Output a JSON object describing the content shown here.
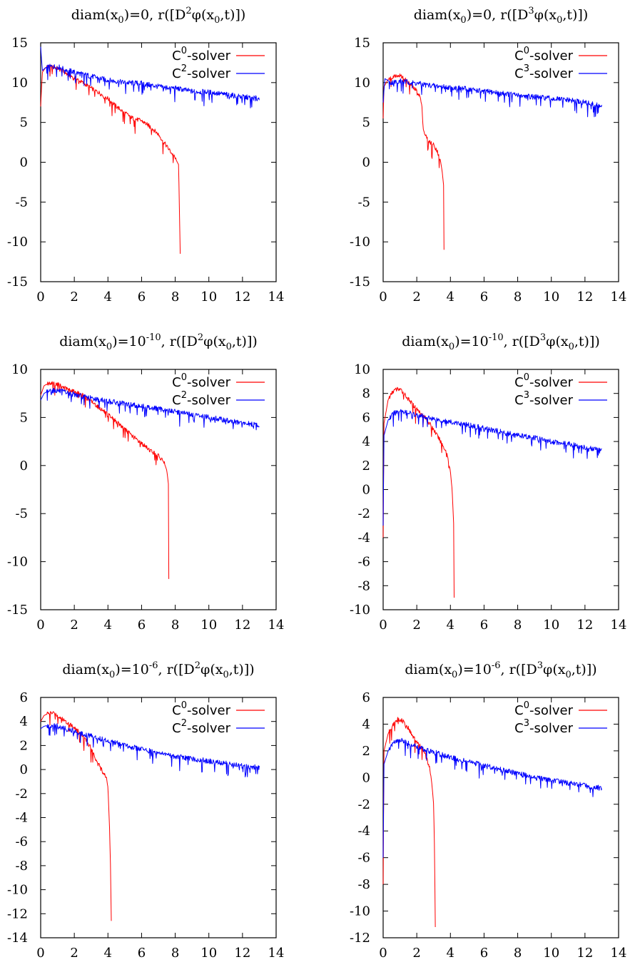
{
  "chart_data": [
    {
      "type": "line",
      "title": {
        "pre": "diam(x",
        "sub1": "0",
        "mid": ")=0, r([D",
        "sup": "2",
        "post1": "φ(x",
        "sub2": "0",
        "post2": ",t)])"
      },
      "xlim": [
        0,
        14
      ],
      "ylim": [
        -15,
        15
      ],
      "xticks": [
        "0",
        "2",
        "4",
        "6",
        "8",
        "10",
        "12",
        "14"
      ],
      "yticks": [
        "-15",
        "-10",
        "-5",
        "0",
        "5",
        "10",
        "15"
      ],
      "grid": false,
      "legend_position": "top-right",
      "series": [
        {
          "name": {
            "base": "C",
            "sup": "0",
            "tail": "-solver"
          },
          "color": "#ff0000",
          "x": [
            0,
            0.1,
            0.3,
            0.6,
            1.0,
            1.5,
            2.0,
            2.5,
            3.0,
            3.5,
            4.0,
            4.5,
            5.0,
            5.5,
            6.0,
            6.5,
            7.0,
            7.5,
            8.0,
            8.2,
            8.25,
            8.3
          ],
          "y": [
            7,
            11.3,
            11.9,
            12.0,
            11.8,
            11.2,
            10.6,
            10.0,
            9.3,
            8.7,
            8.0,
            7.0,
            6.2,
            5.5,
            5.2,
            4.5,
            3.5,
            2.0,
            0.5,
            -0.3,
            -6,
            -11.5
          ]
        },
        {
          "name": {
            "base": "C",
            "sup": "2",
            "tail": "-solver"
          },
          "color": "#0000ff",
          "x": [
            0,
            0.1,
            0.3,
            0.6,
            1.0,
            2.0,
            3.0,
            4.0,
            5.0,
            6.0,
            7.0,
            8.0,
            9.0,
            10.0,
            11.0,
            12.0,
            13.0
          ],
          "y": [
            14.5,
            11.5,
            11.9,
            12.0,
            12.0,
            11.3,
            10.8,
            10.3,
            10.0,
            9.9,
            9.5,
            9.3,
            8.9,
            8.8,
            8.5,
            8.2,
            8.0
          ]
        }
      ]
    },
    {
      "type": "line",
      "title": {
        "pre": "diam(x",
        "sub1": "0",
        "mid": ")=0, r([D",
        "sup": "3",
        "post1": "φ(x",
        "sub2": "0",
        "post2": ",t)])"
      },
      "xlim": [
        0,
        14
      ],
      "ylim": [
        -15,
        15
      ],
      "xticks": [
        "0",
        "2",
        "4",
        "6",
        "8",
        "10",
        "12",
        "14"
      ],
      "yticks": [
        "-15",
        "-10",
        "-5",
        "0",
        "5",
        "10",
        "15"
      ],
      "grid": false,
      "legend_position": "top-right",
      "series": [
        {
          "name": {
            "base": "C",
            "sup": "0",
            "tail": "-solver"
          },
          "color": "#ff0000",
          "x": [
            0,
            0.05,
            0.3,
            0.6,
            0.9,
            1.2,
            1.5,
            1.8,
            2.0,
            2.2,
            2.3,
            2.4,
            2.6,
            2.8,
            3.0,
            3.2,
            3.4,
            3.5,
            3.6,
            3.62
          ],
          "y": [
            5.5,
            9.5,
            10.4,
            10.8,
            11.0,
            10.6,
            10.0,
            9.3,
            9.0,
            8.2,
            7.0,
            4.0,
            3.0,
            2.5,
            2.2,
            1.5,
            0.3,
            -1.0,
            -3.0,
            -11.0
          ]
        },
        {
          "name": {
            "base": "C",
            "sup": "3",
            "tail": "-solver"
          },
          "color": "#0000ff",
          "x": [
            0,
            0.1,
            0.5,
            1,
            2,
            3,
            4,
            5,
            6,
            7,
            8,
            9,
            10,
            11,
            12,
            13
          ],
          "y": [
            7.5,
            10.5,
            10.0,
            10.2,
            9.9,
            9.6,
            9.4,
            9.2,
            8.9,
            8.7,
            8.4,
            8.2,
            8.0,
            7.8,
            7.5,
            7.0
          ]
        }
      ]
    },
    {
      "type": "line",
      "title": {
        "pre": "diam(x",
        "sub1": "0",
        "mid": ")=10",
        "midsup": "-10",
        "mid2": ", r([D",
        "sup": "2",
        "post1": "φ(x",
        "sub2": "0",
        "post2": ",t)])"
      },
      "xlim": [
        0,
        14
      ],
      "ylim": [
        -15,
        10
      ],
      "xticks": [
        "0",
        "2",
        "4",
        "6",
        "8",
        "10",
        "12",
        "14"
      ],
      "yticks": [
        "-15",
        "-10",
        "-5",
        "0",
        "5",
        "10"
      ],
      "grid": false,
      "legend_position": "top-right",
      "series": [
        {
          "name": {
            "base": "C",
            "sup": "0",
            "tail": "-solver"
          },
          "color": "#ff0000",
          "x": [
            0,
            0.2,
            0.5,
            1.0,
            1.5,
            2.0,
            2.5,
            3.0,
            3.5,
            4.0,
            4.5,
            5.0,
            5.5,
            6.0,
            6.5,
            7.0,
            7.3,
            7.5,
            7.6,
            7.62
          ],
          "y": [
            7.3,
            8.3,
            8.6,
            8.5,
            8.0,
            7.7,
            7.3,
            6.7,
            6.0,
            5.3,
            4.6,
            3.8,
            3.0,
            2.3,
            1.6,
            1.0,
            0.5,
            -0.5,
            -2.0,
            -11.8
          ]
        },
        {
          "name": {
            "base": "C",
            "sup": "2",
            "tail": "-solver"
          },
          "color": "#0000ff",
          "x": [
            0,
            0.2,
            0.5,
            1,
            2,
            3,
            4,
            5,
            6,
            7,
            8,
            9,
            10,
            11,
            12,
            13
          ],
          "y": [
            6.8,
            7.5,
            7.8,
            7.8,
            7.4,
            7.0,
            6.7,
            6.4,
            6.2,
            5.9,
            5.6,
            5.3,
            5.0,
            4.7,
            4.4,
            4.2
          ]
        }
      ]
    },
    {
      "type": "line",
      "title": {
        "pre": "diam(x",
        "sub1": "0",
        "mid": ")=10",
        "midsup": "-10",
        "mid2": ", r([D",
        "sup": "3",
        "post1": "φ(x",
        "sub2": "0",
        "post2": ",t)])"
      },
      "xlim": [
        0,
        14
      ],
      "ylim": [
        -10,
        10
      ],
      "xticks": [
        "0",
        "2",
        "4",
        "6",
        "8",
        "10",
        "12",
        "14"
      ],
      "yticks": [
        "-10",
        "-8",
        "-6",
        "-4",
        "-2",
        "0",
        "2",
        "4",
        "6",
        "8",
        "10"
      ],
      "grid": false,
      "legend_position": "top-right",
      "series": [
        {
          "name": {
            "base": "C",
            "sup": "0",
            "tail": "-solver"
          },
          "color": "#ff0000",
          "x": [
            0,
            0.05,
            0.3,
            0.6,
            0.9,
            1.2,
            1.5,
            2.0,
            2.5,
            3.0,
            3.5,
            3.8,
            4.0,
            4.1,
            4.2,
            4.22
          ],
          "y": [
            -4,
            5.5,
            7.5,
            8.2,
            8.4,
            8.1,
            7.5,
            6.7,
            6.0,
            5.0,
            3.8,
            3.0,
            1.5,
            0.0,
            -3.0,
            -9.0
          ]
        },
        {
          "name": {
            "base": "C",
            "sup": "3",
            "tail": "-solver"
          },
          "color": "#0000ff",
          "x": [
            0,
            0.05,
            0.3,
            0.6,
            1,
            2,
            3,
            4,
            5,
            6,
            7,
            8,
            9,
            10,
            11,
            12,
            13
          ],
          "y": [
            -3,
            4.5,
            5.8,
            6.3,
            6.6,
            6.2,
            5.9,
            5.6,
            5.4,
            5.1,
            4.8,
            4.5,
            4.3,
            4.0,
            3.8,
            3.5,
            3.2
          ]
        }
      ]
    },
    {
      "type": "line",
      "title": {
        "pre": "diam(x",
        "sub1": "0",
        "mid": ")=10",
        "midsup": "-6",
        "mid2": ", r([D",
        "sup": "2",
        "post1": "φ(x",
        "sub2": "0",
        "post2": ",t)])"
      },
      "xlim": [
        0,
        14
      ],
      "ylim": [
        -14,
        6
      ],
      "xticks": [
        "0",
        "2",
        "4",
        "6",
        "8",
        "10",
        "12",
        "14"
      ],
      "yticks": [
        "-14",
        "-12",
        "-10",
        "-8",
        "-6",
        "-4",
        "-2",
        "0",
        "2",
        "4",
        "6"
      ],
      "grid": false,
      "legend_position": "top-right",
      "series": [
        {
          "name": {
            "base": "C",
            "sup": "0",
            "tail": "-solver"
          },
          "color": "#ff0000",
          "x": [
            0,
            0.2,
            0.5,
            0.8,
            1.0,
            1.5,
            2.0,
            2.5,
            3.0,
            3.3,
            3.6,
            3.9,
            4.0,
            4.1,
            4.15,
            4.2
          ],
          "y": [
            4.0,
            4.5,
            4.7,
            4.7,
            4.5,
            4.0,
            3.5,
            2.8,
            1.8,
            0.8,
            0.0,
            -0.6,
            -1.5,
            -5.0,
            -8.0,
            -12.6
          ]
        },
        {
          "name": {
            "base": "C",
            "sup": "2",
            "tail": "-solver"
          },
          "color": "#0000ff",
          "x": [
            0,
            0.2,
            0.5,
            1,
            2,
            3,
            4,
            5,
            6,
            7,
            8,
            9,
            10,
            11,
            12,
            13
          ],
          "y": [
            3.4,
            3.6,
            3.7,
            3.6,
            3.2,
            2.8,
            2.4,
            2.0,
            1.7,
            1.4,
            1.1,
            0.9,
            0.7,
            0.5,
            0.3,
            0.2
          ]
        }
      ]
    },
    {
      "type": "line",
      "title": {
        "pre": "diam(x",
        "sub1": "0",
        "mid": ")=10",
        "midsup": "-6",
        "mid2": ", r([D",
        "sup": "3",
        "post1": "φ(x",
        "sub2": "0",
        "post2": ",t)])"
      },
      "xlim": [
        0,
        14
      ],
      "ylim": [
        -12,
        6
      ],
      "xticks": [
        "0",
        "2",
        "4",
        "6",
        "8",
        "10",
        "12",
        "14"
      ],
      "yticks": [
        "-12",
        "-10",
        "-8",
        "-6",
        "-4",
        "-2",
        "0",
        "2",
        "4",
        "6"
      ],
      "grid": false,
      "legend_position": "top-right",
      "series": [
        {
          "name": {
            "base": "C",
            "sup": "0",
            "tail": "-solver"
          },
          "color": "#ff0000",
          "x": [
            0,
            0.05,
            0.3,
            0.6,
            0.9,
            1.2,
            1.5,
            1.8,
            2.1,
            2.4,
            2.6,
            2.8,
            2.9,
            3.0,
            3.05,
            3.1
          ],
          "y": [
            -8,
            2.0,
            3.3,
            4.0,
            4.4,
            4.2,
            3.7,
            3.0,
            2.5,
            2.0,
            1.4,
            0.5,
            -0.5,
            -2.0,
            -5.0,
            -11.2
          ]
        },
        {
          "name": {
            "base": "C",
            "sup": "3",
            "tail": "-solver"
          },
          "color": "#0000ff",
          "x": [
            0,
            0.05,
            0.3,
            0.6,
            1,
            2,
            3,
            4,
            5,
            6,
            7,
            8,
            9,
            10,
            11,
            12,
            13
          ],
          "y": [
            -6,
            1.0,
            2.0,
            2.6,
            2.8,
            2.3,
            1.9,
            1.5,
            1.2,
            0.9,
            0.6,
            0.3,
            0.0,
            -0.2,
            -0.4,
            -0.6,
            -0.8
          ]
        }
      ]
    }
  ]
}
